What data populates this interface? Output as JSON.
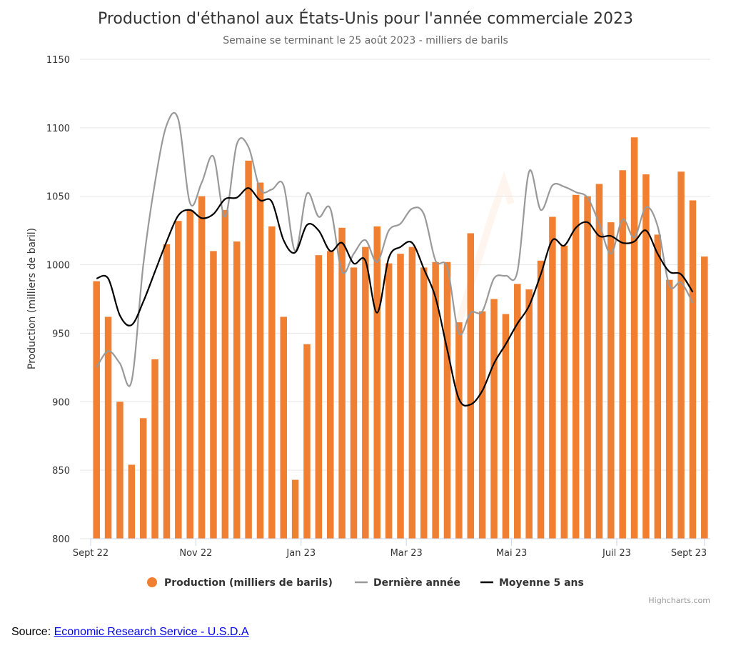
{
  "source": {
    "label": "Source:",
    "link_text": "Economic Research Service - U.S.D.A"
  },
  "credits": "Highcharts.com",
  "colors": {
    "production": "#f07f32",
    "last_year": "#999999",
    "avg5": "#000000",
    "grid": "#e6e6e6"
  },
  "chart_data": {
    "type": "bar",
    "title": "Production d'éthanol aux États-Unis pour l'année commerciale 2023",
    "subtitle": "Semaine se terminant le 25 août 2023 - milliers de barils",
    "ylabel": "Production (milliers de baril)",
    "ylim": [
      800,
      1150
    ],
    "yticks": [
      800,
      850,
      900,
      950,
      1000,
      1050,
      1100,
      1150
    ],
    "x_tick_labels": [
      {
        "label": "Sept 22",
        "index": 0
      },
      {
        "label": "Nov 22",
        "index": 9
      },
      {
        "label": "Jan 23",
        "index": 18
      },
      {
        "label": "Mar 23",
        "index": 27
      },
      {
        "label": "Mai 23",
        "index": 36
      },
      {
        "label": "Juil 23",
        "index": 45
      },
      {
        "label": "Sept 23",
        "index": 52.5
      }
    ],
    "grid": true,
    "legend_position": "bottom-center",
    "series": [
      {
        "name": "Production (milliers de barils)",
        "type": "column",
        "values": [
          988,
          962,
          900,
          854,
          888,
          931,
          1015,
          1032,
          1040,
          1050,
          1010,
          1040,
          1017,
          1076,
          1060,
          1028,
          962,
          843,
          942,
          1007,
          1010,
          1027,
          998,
          1013,
          1028,
          1001,
          1008,
          1013,
          998,
          1002,
          1002,
          958,
          1023,
          966,
          975,
          964,
          986,
          982,
          1003,
          1035,
          1014,
          1051,
          1050,
          1059,
          1031,
          1069,
          1093,
          1066,
          1022,
          989,
          1068,
          1047,
          1006
        ]
      },
      {
        "name": "Dernière année",
        "type": "line",
        "values": [
          925,
          937,
          928,
          915,
          1000,
          1060,
          1102,
          1106,
          1045,
          1060,
          1079,
          1035,
          1088,
          1086,
          1055,
          1055,
          1058,
          1010,
          1052,
          1035,
          1041,
          995,
          1008,
          1018,
          1002,
          1025,
          1030,
          1041,
          1037,
          1003,
          998,
          950,
          965,
          966,
          990,
          992,
          995,
          1068,
          1040,
          1058,
          1057,
          1053,
          1049,
          1030,
          1008,
          1033,
          1020,
          1042,
          1028,
          985,
          987,
          972
        ]
      },
      {
        "name": "Moyenne 5 ans",
        "type": "line",
        "values": [
          990,
          990,
          963,
          956,
          973,
          995,
          1017,
          1036,
          1040,
          1034,
          1037,
          1048,
          1049,
          1056,
          1047,
          1046,
          1018,
          1009,
          1029,
          1025,
          1010,
          1016,
          1001,
          1003,
          965,
          1005,
          1013,
          1016,
          997,
          976,
          938,
          902,
          898,
          908,
          928,
          942,
          957,
          970,
          993,
          1018,
          1014,
          1027,
          1031,
          1021,
          1021,
          1016,
          1017,
          1025,
          1008,
          995,
          993,
          980
        ]
      }
    ]
  }
}
